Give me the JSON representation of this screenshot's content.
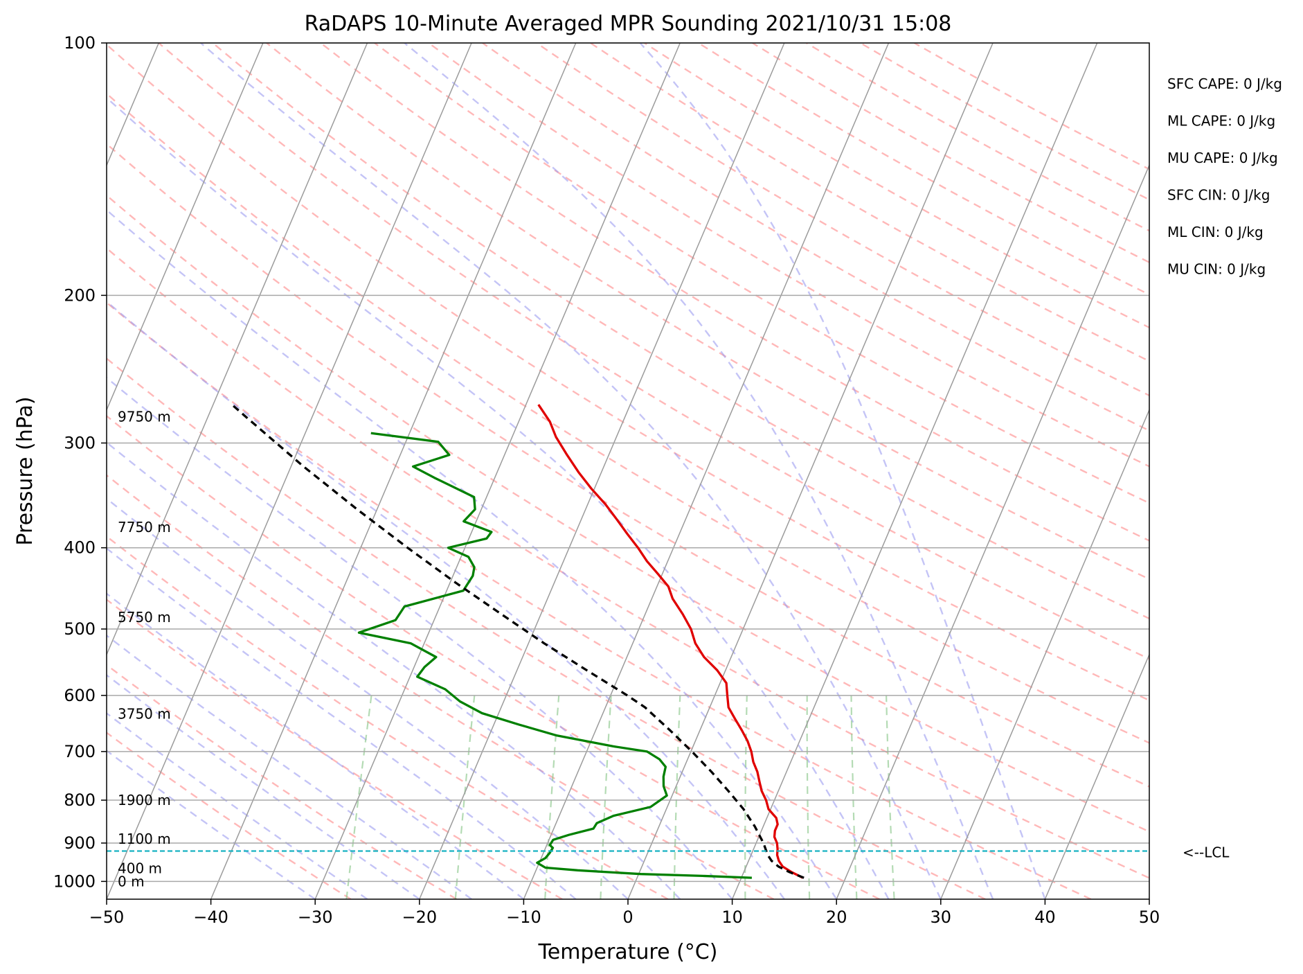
{
  "chart_data": {
    "type": "line",
    "title": "RaDAPS 10-Minute Averaged MPR Sounding 2021/10/31 15:08",
    "xlabel": "Temperature (°C)",
    "ylabel": "Pressure (hPa)",
    "xlim": [
      -50,
      50
    ],
    "ylim": [
      1050,
      100
    ],
    "y_scale": "log",
    "skew_t": true,
    "grid": true,
    "x_ticks": [
      -50,
      -40,
      -30,
      -20,
      -10,
      0,
      10,
      20,
      30,
      40,
      50
    ],
    "x_tick_labels": [
      "−50",
      "−40",
      "−30",
      "−20",
      "−10",
      "0",
      "10",
      "20",
      "30",
      "40",
      "50"
    ],
    "y_ticks": [
      1000,
      900,
      800,
      700,
      600,
      500,
      400,
      300,
      200,
      100
    ],
    "y_tick_labels": [
      "1000",
      "900",
      "800",
      "700",
      "600",
      "500",
      "400",
      "300",
      "200",
      "100"
    ],
    "series": [
      {
        "color": "#e00000",
        "points": [
          [
            990,
            15.9
          ],
          [
            975,
            14.6
          ],
          [
            960,
            13.5
          ],
          [
            945,
            12.9
          ],
          [
            930,
            12.5
          ],
          [
            915,
            12.3
          ],
          [
            900,
            12.0
          ],
          [
            885,
            11.5
          ],
          [
            870,
            11.3
          ],
          [
            855,
            11.3
          ],
          [
            840,
            10.9
          ],
          [
            820,
            9.8
          ],
          [
            800,
            9.2
          ],
          [
            780,
            8.4
          ],
          [
            760,
            7.8
          ],
          [
            740,
            7.2
          ],
          [
            720,
            6.4
          ],
          [
            700,
            5.8
          ],
          [
            680,
            5.0
          ],
          [
            660,
            4.0
          ],
          [
            640,
            2.9
          ],
          [
            620,
            1.8
          ],
          [
            600,
            1.2
          ],
          [
            580,
            0.6
          ],
          [
            560,
            -0.8
          ],
          [
            540,
            -2.6
          ],
          [
            520,
            -4.0
          ],
          [
            500,
            -5.0
          ],
          [
            480,
            -6.4
          ],
          [
            460,
            -8.0
          ],
          [
            445,
            -8.9
          ],
          [
            430,
            -10.4
          ],
          [
            415,
            -12.0
          ],
          [
            400,
            -13.4
          ],
          [
            385,
            -15.0
          ],
          [
            370,
            -16.6
          ],
          [
            355,
            -18.3
          ],
          [
            340,
            -20.3
          ],
          [
            325,
            -22.2
          ],
          [
            310,
            -24.0
          ],
          [
            295,
            -25.8
          ],
          [
            283,
            -27.0
          ],
          [
            270,
            -28.8
          ]
        ]
      },
      {
        "color": "#008000",
        "points": [
          [
            990,
            11.0
          ],
          [
            985,
            6.2
          ],
          [
            980,
            0.2
          ],
          [
            970,
            -6.0
          ],
          [
            963,
            -9.2
          ],
          [
            950,
            -10.2
          ],
          [
            938,
            -9.6
          ],
          [
            925,
            -9.4
          ],
          [
            912,
            -9.3
          ],
          [
            905,
            -9.7
          ],
          [
            892,
            -9.6
          ],
          [
            880,
            -8.3
          ],
          [
            865,
            -6.2
          ],
          [
            852,
            -6.1
          ],
          [
            835,
            -4.8
          ],
          [
            815,
            -1.6
          ],
          [
            790,
            -0.5
          ],
          [
            770,
            -1.2
          ],
          [
            750,
            -1.6
          ],
          [
            730,
            -1.8
          ],
          [
            715,
            -2.7
          ],
          [
            700,
            -4.2
          ],
          [
            690,
            -7.7
          ],
          [
            670,
            -13.5
          ],
          [
            650,
            -17.6
          ],
          [
            630,
            -21.6
          ],
          [
            610,
            -24.2
          ],
          [
            590,
            -26.1
          ],
          [
            570,
            -29.3
          ],
          [
            555,
            -29.0
          ],
          [
            540,
            -28.3
          ],
          [
            520,
            -31.3
          ],
          [
            505,
            -36.7
          ],
          [
            488,
            -33.7
          ],
          [
            470,
            -33.4
          ],
          [
            450,
            -28.4
          ],
          [
            432,
            -28.1
          ],
          [
            422,
            -28.3
          ],
          [
            410,
            -29.3
          ],
          [
            400,
            -31.6
          ],
          [
            390,
            -28.3
          ],
          [
            383,
            -28.1
          ],
          [
            372,
            -31.2
          ],
          [
            360,
            -30.6
          ],
          [
            348,
            -31.2
          ],
          [
            330,
            -35.8
          ],
          [
            320,
            -38.3
          ],
          [
            310,
            -35.3
          ],
          [
            299,
            -36.9
          ],
          [
            292,
            -43.7
          ]
        ]
      },
      {
        "color": "#000000",
        "dashed": true,
        "points": [
          [
            990,
            16.0
          ],
          [
            975,
            14.4
          ],
          [
            960,
            13.1
          ],
          [
            945,
            12.2
          ],
          [
            930,
            11.6
          ],
          [
            920,
            11.3
          ],
          [
            900,
            10.7
          ],
          [
            860,
            9.2
          ],
          [
            820,
            7.4
          ],
          [
            780,
            5.2
          ],
          [
            740,
            2.8
          ],
          [
            700,
            0.1
          ],
          [
            660,
            -2.9
          ],
          [
            620,
            -6.2
          ],
          [
            600,
            -8.4
          ],
          [
            560,
            -13.3
          ],
          [
            520,
            -18.5
          ],
          [
            480,
            -23.8
          ],
          [
            440,
            -29.5
          ],
          [
            400,
            -35.5
          ],
          [
            360,
            -41.9
          ],
          [
            320,
            -48.8
          ],
          [
            280,
            -56.2
          ],
          [
            270,
            -58.2
          ]
        ]
      }
    ],
    "lcl_pressure": 920,
    "lcl_label": "<--LCL",
    "height_labels": [
      {
        "p": 1000,
        "text": "0 m"
      },
      {
        "p": 965,
        "text": "400 m"
      },
      {
        "p": 890,
        "text": "1100 m"
      },
      {
        "p": 800,
        "text": "1900 m"
      },
      {
        "p": 631,
        "text": "3750 m"
      },
      {
        "p": 484,
        "text": "5750 m"
      },
      {
        "p": 378,
        "text": "7750 m"
      },
      {
        "p": 279,
        "text": "9750 m"
      }
    ],
    "stats": [
      "SFC CAPE: 0 J/kg",
      "ML CAPE: 0 J/kg",
      "MU CAPE: 0 J/kg",
      "SFC CIN: 0 J/kg",
      "ML CIN: 0 J/kg",
      "MU CIN: 0 J/kg"
    ]
  }
}
